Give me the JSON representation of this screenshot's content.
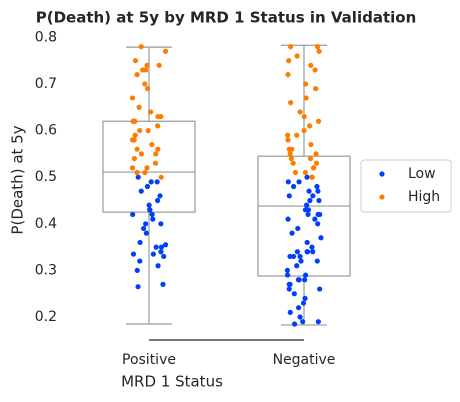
{
  "chart_data": {
    "type": "box",
    "title": "P(Death) at 5y by MRD 1 Status in Validation",
    "x_label": "MRD 1 Status",
    "y_label": "P(Death) at 5y",
    "categories": [
      "Positive",
      "Negative"
    ],
    "boxes": [
      {
        "whislo": 0.185,
        "q1": 0.425,
        "med": 0.511,
        "q3": 0.62,
        "whishi": 0.779
      },
      {
        "whislo": 0.183,
        "q1": 0.288,
        "med": 0.438,
        "q3": 0.545,
        "whishi": 0.783
      }
    ],
    "box_color": "#999999",
    "series": [
      {
        "name": "Low",
        "color": "#023eff",
        "values": [
          [
            0.5,
            0.49,
            0.49,
            0.48,
            0.47,
            0.46,
            0.45,
            0.44,
            0.43,
            0.43,
            0.42,
            0.42,
            0.41,
            0.4,
            0.4,
            0.39,
            0.38,
            0.36,
            0.355,
            0.35,
            0.35,
            0.34,
            0.335,
            0.335,
            0.33,
            0.32,
            0.31,
            0.3,
            0.27,
            0.265
          ],
          [
            0.5,
            0.49,
            0.49,
            0.48,
            0.48,
            0.47,
            0.47,
            0.46,
            0.46,
            0.45,
            0.45,
            0.44,
            0.43,
            0.43,
            0.42,
            0.42,
            0.42,
            0.41,
            0.41,
            0.4,
            0.39,
            0.38,
            0.37,
            0.36,
            0.35,
            0.34,
            0.34,
            0.34,
            0.34,
            0.33,
            0.33,
            0.33,
            0.32,
            0.32,
            0.31,
            0.3,
            0.29,
            0.29,
            0.28,
            0.28,
            0.28,
            0.27,
            0.27,
            0.26,
            0.26,
            0.25,
            0.24,
            0.23,
            0.22,
            0.21,
            0.2,
            0.19,
            0.19,
            0.185
          ]
        ]
      },
      {
        "name": "High",
        "color": "#ff7c00",
        "values": [
          [
            0.78,
            0.77,
            0.75,
            0.74,
            0.74,
            0.73,
            0.73,
            0.72,
            0.7,
            0.69,
            0.67,
            0.65,
            0.64,
            0.63,
            0.63,
            0.62,
            0.62,
            0.61,
            0.6,
            0.6,
            0.59,
            0.58,
            0.58,
            0.57,
            0.56,
            0.56,
            0.55,
            0.55,
            0.54,
            0.53,
            0.52,
            0.52,
            0.51,
            0.51,
            0.5
          ],
          [
            0.78,
            0.78,
            0.77,
            0.76,
            0.75,
            0.74,
            0.73,
            0.72,
            0.7,
            0.69,
            0.67,
            0.66,
            0.64,
            0.63,
            0.62,
            0.61,
            0.6,
            0.59,
            0.59,
            0.58,
            0.57,
            0.56,
            0.56,
            0.55,
            0.55,
            0.54,
            0.54,
            0.53,
            0.53,
            0.52,
            0.52,
            0.51,
            0.51,
            0.5,
            0.5
          ]
        ]
      }
    ],
    "ylim": [
      0.155,
      0.805
    ],
    "yticks": [
      0.2,
      0.3,
      0.4,
      0.5,
      0.6,
      0.7,
      0.8
    ],
    "grid": false,
    "legend": "right"
  }
}
